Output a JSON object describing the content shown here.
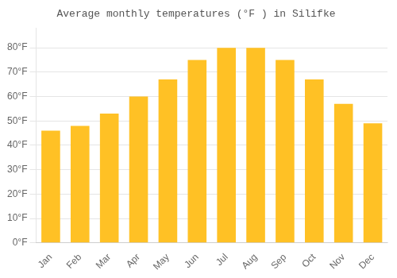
{
  "chart_data": {
    "type": "bar",
    "title": "Average monthly temperatures (°F ) in Silifke",
    "categories": [
      "Jan",
      "Feb",
      "Mar",
      "Apr",
      "May",
      "Jun",
      "Jul",
      "Aug",
      "Sep",
      "Oct",
      "Nov",
      "Dec"
    ],
    "values": [
      46,
      48,
      53,
      60,
      67,
      75,
      80,
      80,
      75,
      67,
      57,
      49
    ],
    "color": "#FFC125",
    "ylim": [
      0,
      88
    ],
    "yticks": [
      {
        "value": 0,
        "label": "0°F"
      },
      {
        "value": 10,
        "label": "10°F"
      },
      {
        "value": 20,
        "label": "20°F"
      },
      {
        "value": 30,
        "label": "30°F"
      },
      {
        "value": 40,
        "label": "40°F"
      },
      {
        "value": 50,
        "label": "50°F"
      },
      {
        "value": 60,
        "label": "60°F"
      },
      {
        "value": 70,
        "label": "70°F"
      },
      {
        "value": 80,
        "label": "80°F"
      }
    ],
    "grid": true
  }
}
